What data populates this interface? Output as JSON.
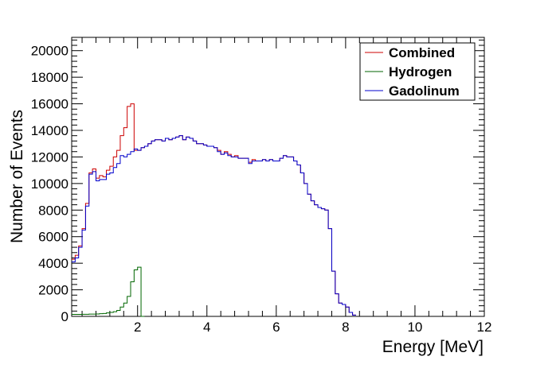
{
  "chart_data": {
    "type": "line",
    "title": "",
    "xlabel": "Energy [MeV]",
    "ylabel": "Number of Events",
    "xlim": [
      0.1,
      12
    ],
    "ylim": [
      0,
      21000
    ],
    "xticks": [
      2,
      4,
      6,
      8,
      10,
      12
    ],
    "yticks": [
      0,
      2000,
      4000,
      6000,
      8000,
      10000,
      12000,
      14000,
      16000,
      18000,
      20000
    ],
    "xtick_labels": [
      "2",
      "4",
      "6",
      "8",
      "10",
      "12"
    ],
    "ytick_labels": [
      "0",
      "2000",
      "4000",
      "6000",
      "8000",
      "10000",
      "12000",
      "14000",
      "16000",
      "18000",
      "20000"
    ],
    "legend_position": "top-right",
    "grid": false,
    "bin_width": 0.1,
    "x_start": 0.1,
    "series": [
      {
        "name": "Combined",
        "color": "#cc0000",
        "values": [
          4300,
          4600,
          5300,
          6600,
          8500,
          10800,
          11100,
          10400,
          10600,
          10500,
          11000,
          11300,
          12000,
          12500,
          13600,
          14200,
          15800,
          16000,
          12500,
          12500,
          12700,
          12800,
          13000,
          13200,
          13300,
          13300,
          13200,
          13400,
          13300,
          13400,
          13500,
          13600,
          13300,
          13500,
          13400,
          13200,
          13000,
          13000,
          12900,
          12800,
          12800,
          12700,
          12500,
          12200,
          12400,
          12200,
          12000,
          12100,
          11900,
          11900,
          11900,
          11600,
          11800,
          11700,
          11700,
          11800,
          11700,
          11800,
          11700,
          11700,
          11900,
          12100,
          12000,
          12000,
          11700,
          11400,
          10800,
          10000,
          9200,
          8700,
          8400,
          8200,
          8100,
          8000,
          6600,
          3400,
          1700,
          1000,
          900,
          700,
          300,
          100
        ]
      },
      {
        "name": "Hydrogen",
        "color": "#006600",
        "values": [
          150,
          150,
          150,
          160,
          160,
          170,
          170,
          180,
          200,
          220,
          260,
          300,
          350,
          450,
          700,
          1000,
          1500,
          2600,
          3500,
          3700,
          0
        ]
      },
      {
        "name": "Gadolinum",
        "color": "#0000cc",
        "values": [
          4100,
          4400,
          5200,
          6500,
          8300,
          10700,
          10900,
          10200,
          10300,
          10300,
          10700,
          10800,
          11200,
          11500,
          12100,
          12000,
          12200,
          12400,
          12600,
          12500,
          12700,
          12800,
          13000,
          13200,
          13300,
          13300,
          13200,
          13400,
          13300,
          13400,
          13500,
          13600,
          13300,
          13500,
          13400,
          13200,
          13000,
          13000,
          12900,
          12800,
          12800,
          12700,
          12400,
          12200,
          12300,
          12100,
          12000,
          12000,
          11900,
          11900,
          11900,
          11500,
          11700,
          11700,
          11700,
          11800,
          11700,
          11800,
          11700,
          11700,
          11900,
          12100,
          12000,
          12000,
          11700,
          11400,
          10800,
          10000,
          9200,
          8700,
          8400,
          8200,
          8100,
          8000,
          6600,
          3400,
          1700,
          1000,
          900,
          700,
          300,
          100
        ]
      }
    ]
  }
}
